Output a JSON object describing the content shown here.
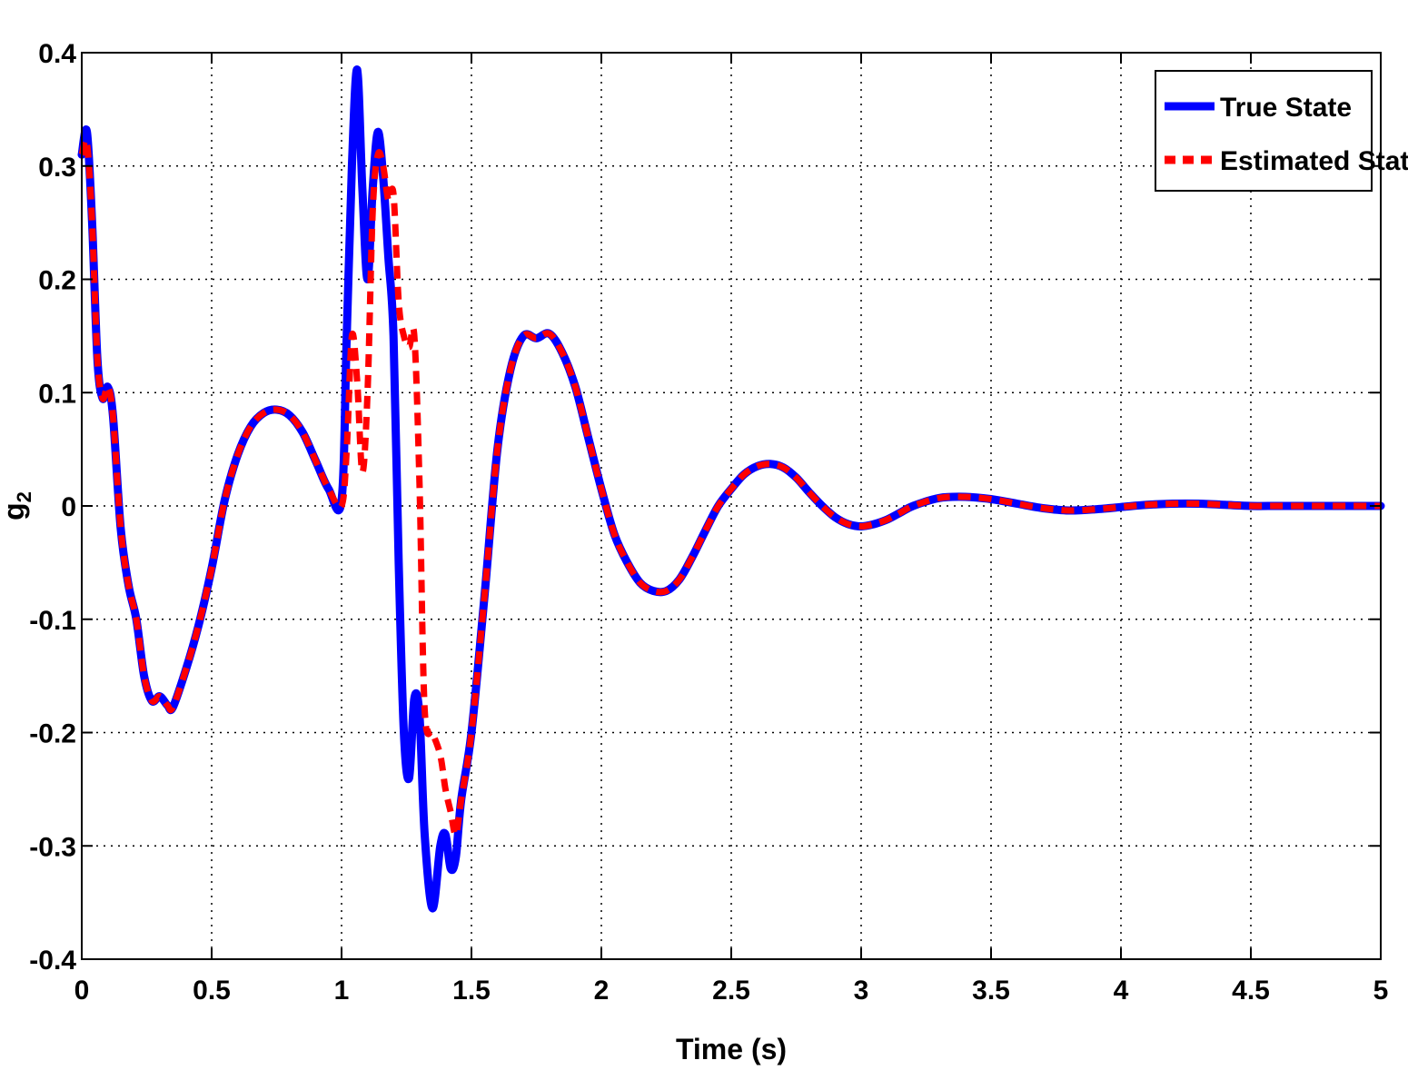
{
  "chart_data": {
    "type": "line",
    "title": "",
    "xlabel": "Time (s)",
    "ylabel": "g",
    "ylabel_sub": "2",
    "xlim": [
      0,
      5
    ],
    "ylim": [
      -0.4,
      0.4
    ],
    "grid": true,
    "legend_position": "top-right",
    "xticks": [
      0,
      0.5,
      1,
      1.5,
      2,
      2.5,
      3,
      3.5,
      4,
      4.5,
      5
    ],
    "xtick_labels": [
      "0",
      "0.5",
      "1",
      "1.5",
      "2",
      "2.5",
      "3",
      "3.5",
      "4",
      "4.5",
      "5"
    ],
    "yticks": [
      -0.4,
      -0.3,
      -0.2,
      -0.1,
      0,
      0.1,
      0.2,
      0.3,
      0.4
    ],
    "ytick_labels": [
      "-0.4",
      "-0.3",
      "-0.2",
      "-0.1",
      "0",
      "0.1",
      "0.2",
      "0.3",
      "0.4"
    ],
    "series": [
      {
        "name": "True State",
        "color": "#0000ff",
        "style": "solid",
        "x": [
          0,
          0.02,
          0.04,
          0.06,
          0.08,
          0.1,
          0.12,
          0.15,
          0.18,
          0.21,
          0.24,
          0.27,
          0.3,
          0.33,
          0.35,
          0.4,
          0.45,
          0.5,
          0.55,
          0.6,
          0.65,
          0.7,
          0.75,
          0.8,
          0.85,
          0.9,
          0.95,
          1.0,
          1.02,
          1.04,
          1.06,
          1.08,
          1.1,
          1.12,
          1.14,
          1.16,
          1.18,
          1.2,
          1.22,
          1.24,
          1.26,
          1.28,
          1.3,
          1.32,
          1.35,
          1.38,
          1.4,
          1.42,
          1.44,
          1.46,
          1.5,
          1.55,
          1.6,
          1.65,
          1.7,
          1.75,
          1.8,
          1.85,
          1.9,
          1.95,
          2.0,
          2.05,
          2.1,
          2.15,
          2.2,
          2.25,
          2.3,
          2.35,
          2.4,
          2.45,
          2.5,
          2.55,
          2.6,
          2.65,
          2.7,
          2.75,
          2.8,
          2.85,
          2.9,
          2.95,
          3.0,
          3.05,
          3.1,
          3.15,
          3.2,
          3.3,
          3.4,
          3.5,
          3.6,
          3.7,
          3.8,
          3.9,
          4.0,
          4.1,
          4.2,
          4.3,
          4.4,
          4.5,
          4.6,
          4.7,
          4.8,
          4.9,
          5.0
        ],
        "y": [
          0.31,
          0.33,
          0.25,
          0.13,
          0.095,
          0.105,
          0.08,
          -0.02,
          -0.07,
          -0.1,
          -0.15,
          -0.172,
          -0.168,
          -0.176,
          -0.178,
          -0.145,
          -0.105,
          -0.055,
          0.005,
          0.045,
          0.07,
          0.082,
          0.085,
          0.08,
          0.065,
          0.04,
          0.015,
          0.005,
          0.15,
          0.3,
          0.385,
          0.28,
          0.2,
          0.28,
          0.33,
          0.29,
          0.22,
          0.15,
          -0.05,
          -0.2,
          -0.24,
          -0.17,
          -0.185,
          -0.29,
          -0.355,
          -0.3,
          -0.29,
          -0.32,
          -0.31,
          -0.26,
          -0.2,
          -0.08,
          0.05,
          0.12,
          0.15,
          0.148,
          0.152,
          0.135,
          0.105,
          0.06,
          0.015,
          -0.025,
          -0.05,
          -0.068,
          -0.075,
          -0.075,
          -0.065,
          -0.045,
          -0.022,
          0.0,
          0.015,
          0.028,
          0.035,
          0.037,
          0.034,
          0.025,
          0.012,
          0.0,
          -0.01,
          -0.016,
          -0.018,
          -0.016,
          -0.012,
          -0.006,
          0.0,
          0.007,
          0.008,
          0.006,
          0.002,
          -0.002,
          -0.004,
          -0.003,
          -0.001,
          0.001,
          0.002,
          0.002,
          0.001,
          0.0,
          0.0,
          0.0,
          0.0,
          0.0,
          0.0
        ]
      },
      {
        "name": "Estimated State",
        "color": "#ff0000",
        "style": "dashed",
        "x": [
          0,
          0.02,
          0.04,
          0.06,
          0.08,
          0.1,
          0.12,
          0.15,
          0.18,
          0.21,
          0.24,
          0.27,
          0.3,
          0.33,
          0.35,
          0.4,
          0.45,
          0.5,
          0.55,
          0.6,
          0.65,
          0.7,
          0.75,
          0.8,
          0.85,
          0.9,
          0.95,
          1.0,
          1.02,
          1.04,
          1.06,
          1.08,
          1.1,
          1.12,
          1.14,
          1.16,
          1.18,
          1.2,
          1.22,
          1.24,
          1.26,
          1.28,
          1.3,
          1.32,
          1.35,
          1.38,
          1.4,
          1.42,
          1.44,
          1.46,
          1.5,
          1.55,
          1.6,
          1.65,
          1.7,
          1.75,
          1.8,
          1.85,
          1.9,
          1.95,
          2.0,
          2.05,
          2.1,
          2.15,
          2.2,
          2.25,
          2.3,
          2.35,
          2.4,
          2.45,
          2.5,
          2.55,
          2.6,
          2.65,
          2.7,
          2.75,
          2.8,
          2.85,
          2.9,
          2.95,
          3.0,
          3.05,
          3.1,
          3.15,
          3.2,
          3.3,
          3.4,
          3.5,
          3.6,
          3.7,
          3.8,
          3.9,
          4.0,
          4.1,
          4.2,
          4.3,
          4.4,
          4.5,
          4.6,
          4.7,
          4.8,
          4.9,
          5.0
        ],
        "y": [
          0.31,
          0.32,
          0.25,
          0.13,
          0.095,
          0.105,
          0.08,
          -0.02,
          -0.07,
          -0.1,
          -0.15,
          -0.172,
          -0.168,
          -0.176,
          -0.178,
          -0.145,
          -0.105,
          -0.055,
          0.005,
          0.045,
          0.07,
          0.082,
          0.085,
          0.08,
          0.065,
          0.04,
          0.015,
          0.0,
          0.05,
          0.15,
          0.11,
          0.03,
          0.1,
          0.26,
          0.31,
          0.3,
          0.27,
          0.275,
          0.18,
          0.15,
          0.14,
          0.15,
          0.02,
          -0.18,
          -0.2,
          -0.22,
          -0.25,
          -0.27,
          -0.29,
          -0.26,
          -0.2,
          -0.08,
          0.05,
          0.12,
          0.15,
          0.148,
          0.152,
          0.135,
          0.105,
          0.06,
          0.015,
          -0.025,
          -0.05,
          -0.068,
          -0.075,
          -0.075,
          -0.065,
          -0.045,
          -0.022,
          0.0,
          0.015,
          0.028,
          0.035,
          0.037,
          0.034,
          0.025,
          0.012,
          0.0,
          -0.01,
          -0.016,
          -0.018,
          -0.016,
          -0.012,
          -0.006,
          0.0,
          0.007,
          0.008,
          0.006,
          0.002,
          -0.002,
          -0.004,
          -0.003,
          -0.001,
          0.001,
          0.002,
          0.002,
          0.001,
          0.0,
          0.0,
          0.0,
          0.0,
          0.0,
          0.0
        ]
      }
    ]
  }
}
